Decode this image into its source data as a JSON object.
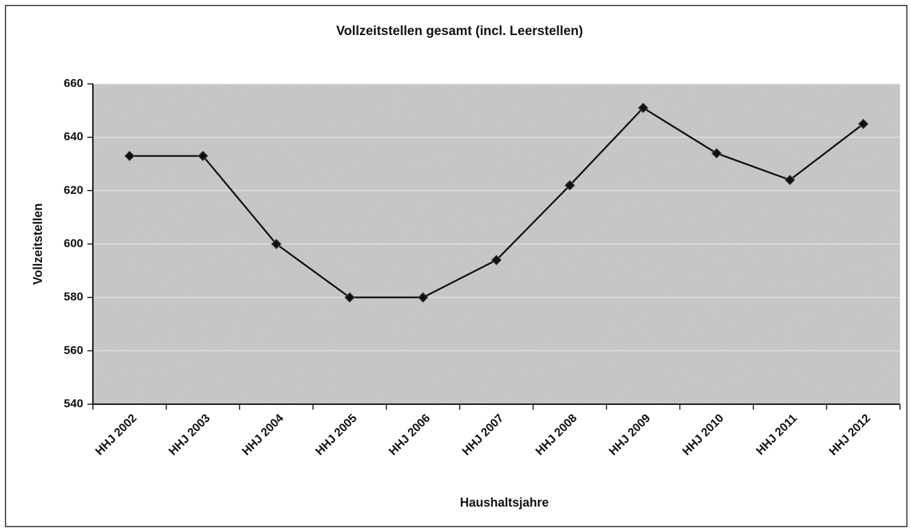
{
  "chart_data": {
    "type": "line",
    "title": "Vollzeitstellen gesamt (incl. Leerstellen)",
    "x_label": "Haushaltsjahre",
    "y_label": "Vollzeitstellen",
    "categories": [
      "HHJ 2002",
      "HHJ 2003",
      "HHJ 2004",
      "HHJ 2005",
      "HHJ 2006",
      "HHJ 2007",
      "HHJ 2008",
      "HHJ 2009",
      "HHJ 2010",
      "HHJ 2011",
      "HHJ 2012"
    ],
    "series": [
      {
        "name": "Vollzeitstellen",
        "color": "#111111",
        "values": [
          633,
          633,
          600,
          580,
          580,
          594,
          622,
          651,
          634,
          624,
          645
        ]
      }
    ],
    "ylim": [
      540,
      660
    ],
    "yticks": [
      540,
      560,
      580,
      600,
      620,
      640,
      660
    ],
    "grid": true
  }
}
